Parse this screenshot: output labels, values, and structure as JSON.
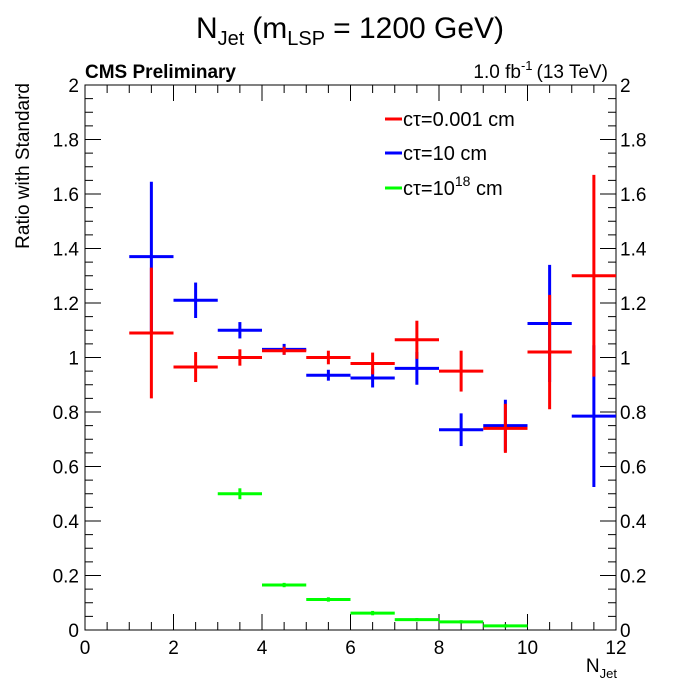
{
  "chart_data": {
    "type": "scatter",
    "title": {
      "main": "N",
      "main_sub": "Jet",
      "paren_open": "(m",
      "paren_sub": "LSP",
      "rest": "= 1200 GeV)"
    },
    "header_left": "CMS Preliminary",
    "header_right": {
      "lumi": "1.0 fb",
      "lumi_sup": "-1",
      "energy": "(13 TeV)"
    },
    "xlabel": {
      "main": "N",
      "sub": "Jet"
    },
    "ylabel": "Ratio with Standard",
    "xlim": [
      0,
      12
    ],
    "ylim": [
      0,
      2
    ],
    "x_ticks": [
      "0",
      "2",
      "4",
      "6",
      "8",
      "10",
      "12"
    ],
    "y_ticks": [
      "0",
      "0.2",
      "0.4",
      "0.6",
      "0.8",
      "1",
      "1.2",
      "1.4",
      "1.6",
      "1.8",
      "2"
    ],
    "legend_position": "top-right",
    "series": [
      {
        "name": "cτ=0.001 cm",
        "legend": {
          "base": "cτ=0.001 cm",
          "sup": "",
          "rest": ""
        },
        "color": "#ff0000",
        "points": [
          {
            "x": 1.5,
            "y": 1.09,
            "yerr": 0.24
          },
          {
            "x": 2.5,
            "y": 0.965,
            "yerr": 0.055
          },
          {
            "x": 3.5,
            "y": 1.0,
            "yerr": 0.03
          },
          {
            "x": 4.5,
            "y": 1.025,
            "yerr": 0.015
          },
          {
            "x": 5.5,
            "y": 1.0,
            "yerr": 0.025
          },
          {
            "x": 6.5,
            "y": 0.978,
            "yerr": 0.04
          },
          {
            "x": 7.5,
            "y": 1.065,
            "yerr": 0.07
          },
          {
            "x": 8.5,
            "y": 0.95,
            "yerr": 0.075
          },
          {
            "x": 9.5,
            "y": 0.74,
            "yerr": 0.09
          },
          {
            "x": 10.5,
            "y": 1.02,
            "yerr": 0.21
          },
          {
            "x": 11.5,
            "y": 1.3,
            "yerr": 0.37
          }
        ]
      },
      {
        "name": "cτ=10 cm",
        "legend": {
          "base": "cτ=10 cm",
          "sup": "",
          "rest": ""
        },
        "color": "#0000ff",
        "points": [
          {
            "x": 1.5,
            "y": 1.37,
            "yerr": 0.275
          },
          {
            "x": 2.5,
            "y": 1.21,
            "yerr": 0.065
          },
          {
            "x": 3.5,
            "y": 1.1,
            "yerr": 0.03
          },
          {
            "x": 4.5,
            "y": 1.03,
            "yerr": 0.02
          },
          {
            "x": 5.5,
            "y": 0.935,
            "yerr": 0.02
          },
          {
            "x": 6.5,
            "y": 0.925,
            "yerr": 0.035
          },
          {
            "x": 7.5,
            "y": 0.96,
            "yerr": 0.06
          },
          {
            "x": 8.5,
            "y": 0.735,
            "yerr": 0.06
          },
          {
            "x": 9.5,
            "y": 0.75,
            "yerr": 0.095
          },
          {
            "x": 10.5,
            "y": 1.125,
            "yerr": 0.215
          },
          {
            "x": 11.5,
            "y": 0.785,
            "yerr": 0.26
          }
        ]
      },
      {
        "name": "cτ=10^18 cm",
        "legend": {
          "base": "cτ=10",
          "sup": "18",
          "rest": " cm"
        },
        "color": "#00ff00",
        "points": [
          {
            "x": 3.5,
            "y": 0.5,
            "yerr": 0.02
          },
          {
            "x": 4.5,
            "y": 0.165,
            "yerr": 0.008
          },
          {
            "x": 5.5,
            "y": 0.112,
            "yerr": 0.008
          },
          {
            "x": 6.5,
            "y": 0.062,
            "yerr": 0.008
          },
          {
            "x": 7.5,
            "y": 0.038,
            "yerr": 0.006
          },
          {
            "x": 8.5,
            "y": 0.03,
            "yerr": 0.006
          },
          {
            "x": 9.5,
            "y": 0.015,
            "yerr": 0.006
          }
        ]
      }
    ]
  }
}
